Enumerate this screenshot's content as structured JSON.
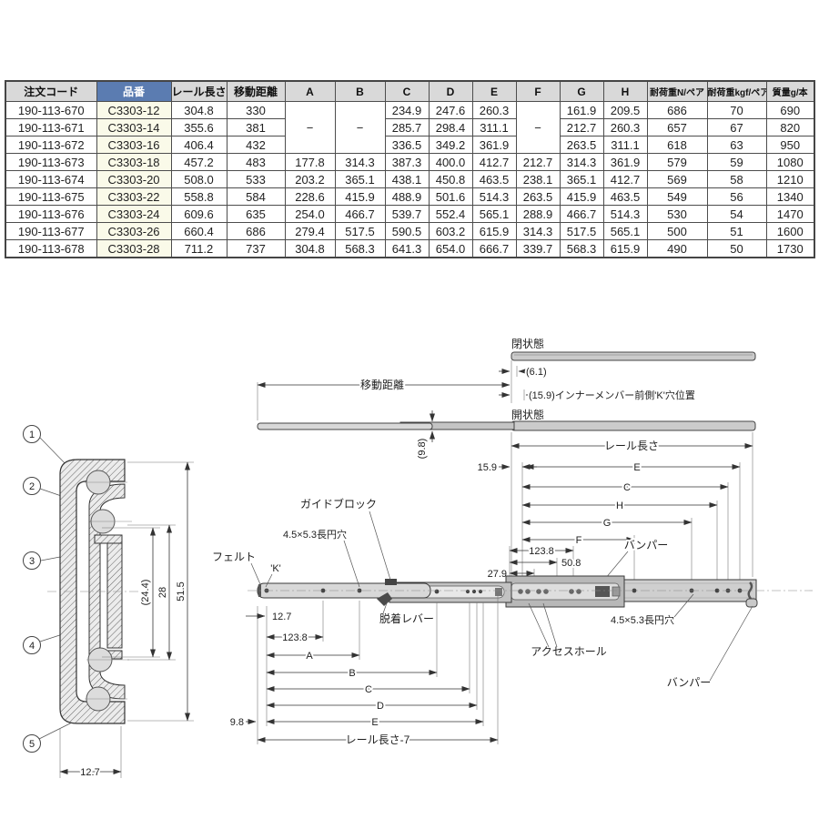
{
  "table": {
    "headers": [
      "注文コード",
      "品番",
      "レール長さ",
      "移動距離",
      "A",
      "B",
      "C",
      "D",
      "E",
      "F",
      "G",
      "H",
      "耐荷重N/ペア",
      "耐荷重kgf/ペア",
      "質量g/本"
    ],
    "dash": "−",
    "rows": [
      {
        "cells": [
          "190-113-670",
          "C3303-12",
          "304.8",
          "330",
          null,
          null,
          "234.9",
          "247.6",
          "260.3",
          null,
          "161.9",
          "209.5",
          "686",
          "70",
          "690"
        ]
      },
      {
        "cells": [
          "190-113-671",
          "C3303-14",
          "355.6",
          "381",
          null,
          null,
          "285.7",
          "298.4",
          "311.1",
          null,
          "212.7",
          "260.3",
          "657",
          "67",
          "820"
        ]
      },
      {
        "cells": [
          "190-113-672",
          "C3303-16",
          "406.4",
          "432",
          null,
          null,
          "336.5",
          "349.2",
          "361.9",
          null,
          "263.5",
          "311.1",
          "618",
          "63",
          "950"
        ]
      },
      {
        "cells": [
          "190-113-673",
          "C3303-18",
          "457.2",
          "483",
          "177.8",
          "314.3",
          "387.3",
          "400.0",
          "412.7",
          "212.7",
          "314.3",
          "361.9",
          "579",
          "59",
          "1080"
        ]
      },
      {
        "cells": [
          "190-113-674",
          "C3303-20",
          "508.0",
          "533",
          "203.2",
          "365.1",
          "438.1",
          "450.8",
          "463.5",
          "238.1",
          "365.1",
          "412.7",
          "569",
          "58",
          "1210"
        ]
      },
      {
        "cells": [
          "190-113-675",
          "C3303-22",
          "558.8",
          "584",
          "228.6",
          "415.9",
          "488.9",
          "501.6",
          "514.3",
          "263.5",
          "415.9",
          "463.5",
          "549",
          "56",
          "1340"
        ]
      },
      {
        "cells": [
          "190-113-676",
          "C3303-24",
          "609.6",
          "635",
          "254.0",
          "466.7",
          "539.7",
          "552.4",
          "565.1",
          "288.9",
          "466.7",
          "514.3",
          "530",
          "54",
          "1470"
        ]
      },
      {
        "cells": [
          "190-113-677",
          "C3303-26",
          "660.4",
          "686",
          "279.4",
          "517.5",
          "590.5",
          "603.2",
          "615.9",
          "314.3",
          "517.5",
          "565.1",
          "500",
          "51",
          "1600"
        ]
      },
      {
        "cells": [
          "190-113-678",
          "C3303-28",
          "711.2",
          "737",
          "304.8",
          "568.3",
          "641.3",
          "654.0",
          "666.7",
          "339.7",
          "568.3",
          "615.9",
          "490",
          "50",
          "1730"
        ]
      }
    ]
  },
  "side_view": {
    "closed_state": "閉状態",
    "open_state": "開状態",
    "travel": "移動距離",
    "dim_6_1": "(6.1)",
    "k_hole_note": "(15.9)インナーメンバー前側'K'穴位置",
    "rail_length": "レール長さ",
    "dim_9_8_thickness": "(9.8)",
    "dim_15_9": "15.9",
    "dims_upper": [
      "E",
      "C",
      "H",
      "G",
      "F"
    ],
    "dim_123_8": "123.8",
    "dim_50_8": "50.8",
    "dim_27_9": "27.9",
    "bumper": "バンパー",
    "guide_block": "ガイドブロック",
    "oblong_hole": "4.5×5.3長円穴",
    "felt": "フェルト",
    "k_mark": "'K'",
    "release_lever": "脱着レバー",
    "access_hole": "アクセスホール",
    "dim_12_7": "12.7",
    "dims_lower": [
      "A",
      "B",
      "C",
      "D",
      "E"
    ],
    "dim_9_8": "9.8",
    "rail_length_minus_7": "レール長さ-7"
  },
  "cross_section": {
    "callouts": [
      "1",
      "2",
      "3",
      "4",
      "5"
    ],
    "dim_24_4": "(24.4)",
    "dim_28": "28",
    "dim_51_5": "51.5",
    "dim_12_7": "12.7"
  },
  "colors": {
    "part_header_bg": "#5b7cb1",
    "part_cell_bg": "#fafae9",
    "header_bg": "#d9d9d9",
    "rail_fill": "#cfcfcf"
  }
}
